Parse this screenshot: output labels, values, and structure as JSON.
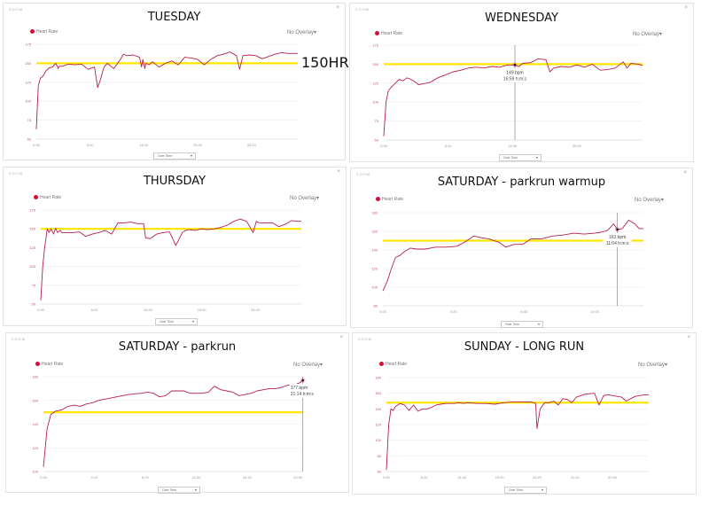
{
  "common": {
    "zoom_label": "ZOOM",
    "close_label": "×",
    "legend_label": "Heart Rate",
    "overlay_label": "No Overlay",
    "select_label": "Over Time",
    "line_color": "#b5204f",
    "threshold_color": "#ffe600",
    "legend_dot_color": "#d0103a"
  },
  "annotation": {
    "label": "150HR"
  },
  "chart_data": [
    {
      "type": "line",
      "title": "TUESDAY",
      "ylim": [
        50,
        175
      ],
      "yticks": [
        "50",
        "75",
        "100",
        "125",
        "150",
        "175"
      ],
      "xticks": [
        "0:00",
        "8:20",
        "16:40",
        "25:00",
        "33:20"
      ],
      "xmax_min": 40.5,
      "threshold": 150,
      "series": [
        {
          "name": "Heart Rate",
          "x": [
            0,
            0.3,
            0.6,
            1,
            1.5,
            2,
            2.5,
            3,
            3.4,
            3.5,
            4,
            5,
            6,
            7,
            8,
            9,
            9.5,
            10,
            10.3,
            10.5,
            11,
            12,
            13,
            13.5,
            14,
            15,
            16,
            16.3,
            16.5,
            16.8,
            17,
            17.5,
            18,
            19,
            20,
            21,
            22,
            23,
            24,
            25,
            26,
            27,
            28,
            29,
            30,
            31,
            31.5,
            32,
            33,
            34,
            35,
            36,
            37,
            38,
            39,
            40,
            40.5
          ],
          "y": [
            63,
            120,
            130,
            133,
            140,
            144,
            145,
            150,
            143,
            146,
            146,
            149,
            148,
            149,
            142,
            145,
            118,
            130,
            140,
            145,
            150,
            143,
            155,
            162,
            160,
            161,
            158,
            145,
            155,
            143,
            150,
            148,
            152,
            145,
            150,
            153,
            148,
            158,
            157,
            155,
            148,
            155,
            160,
            162,
            165,
            160,
            142,
            160,
            161,
            160,
            156,
            159,
            162,
            164,
            163,
            163,
            163
          ]
        }
      ],
      "tooltip": null
    },
    {
      "type": "line",
      "title": "WEDNESDAY",
      "ylim": [
        50,
        175
      ],
      "yticks": [
        "50",
        "75",
        "100",
        "125",
        "150",
        "175"
      ],
      "xticks": [
        "0:00",
        "8:20",
        "16:40",
        "25:00"
      ],
      "xmax_min": 33.5,
      "threshold": 150,
      "series": [
        {
          "name": "Heart Rate",
          "x": [
            0,
            0.3,
            0.6,
            1,
            1.5,
            2,
            2.5,
            3,
            3.5,
            4,
            4.5,
            5,
            6,
            7,
            8,
            9,
            10,
            11,
            12,
            13,
            14,
            15,
            16,
            16.9,
            17.5,
            18,
            19,
            20,
            21,
            21.5,
            22,
            23,
            24,
            25,
            26,
            27,
            28,
            29,
            30,
            31,
            31.5,
            32,
            33,
            33.5
          ],
          "y": [
            55,
            100,
            115,
            120,
            125,
            130,
            128,
            132,
            130,
            127,
            123,
            124,
            126,
            132,
            136,
            140,
            142,
            145,
            146,
            145,
            147,
            146,
            149,
            149,
            147,
            151,
            152,
            157,
            156,
            140,
            145,
            147,
            146,
            149,
            146,
            150,
            142,
            143,
            145,
            153,
            145,
            151,
            150,
            148
          ]
        }
      ],
      "tooltip": {
        "x": 16.98,
        "value": "149 bpm",
        "time": "16:59 h:m:s"
      }
    },
    {
      "type": "line",
      "title": "THURSDAY",
      "ylim": [
        50,
        175
      ],
      "yticks": [
        "50",
        "75",
        "100",
        "125",
        "150",
        "175"
      ],
      "xticks": [
        "0:00",
        "8:20",
        "16:40",
        "25:00",
        "33:20"
      ],
      "xmax_min": 40.5,
      "threshold": 150,
      "series": [
        {
          "name": "Heart Rate",
          "x": [
            0,
            0.3,
            0.6,
            1,
            1.3,
            1.6,
            2,
            2.3,
            2.6,
            3,
            3.3,
            4,
            5,
            6,
            7,
            8,
            9,
            10,
            11,
            12,
            13,
            14,
            15,
            16,
            16.3,
            17,
            18,
            19,
            20,
            21,
            22,
            22.3,
            23,
            24,
            25,
            26,
            27,
            28,
            29,
            30,
            31,
            32,
            33,
            33.5,
            34,
            35,
            36,
            37,
            38,
            39,
            40,
            40.5
          ],
          "y": [
            55,
            100,
            125,
            150,
            145,
            150,
            143,
            151,
            145,
            148,
            145,
            145,
            145,
            146,
            140,
            143,
            145,
            148,
            143,
            158,
            158,
            159,
            157,
            157,
            138,
            137,
            143,
            145,
            146,
            128,
            145,
            147,
            149,
            148,
            150,
            149,
            150,
            152,
            155,
            160,
            163,
            160,
            145,
            160,
            158,
            158,
            158,
            153,
            156,
            161,
            160,
            160
          ]
        }
      ],
      "tooltip": null
    },
    {
      "type": "line",
      "title": "SATURDAY - parkrun warmup",
      "ylim": [
        80,
        180
      ],
      "yticks": [
        "80",
        "100",
        "120",
        "140",
        "160",
        "180"
      ],
      "xticks": [
        "0:00",
        "3:20",
        "6:40",
        "10:00"
      ],
      "xmax_min": 12.3,
      "threshold": 150,
      "series": [
        {
          "name": "Heart Rate",
          "x": [
            0,
            0.2,
            0.4,
            0.6,
            0.8,
            1,
            1.3,
            1.6,
            2,
            2.5,
            3,
            3.5,
            3.9,
            4.3,
            4.7,
            5,
            5.5,
            5.8,
            6.2,
            6.6,
            7,
            7.5,
            8,
            8.5,
            9,
            9.5,
            10,
            10.3,
            10.6,
            10.9,
            11.07,
            11.3,
            11.6,
            11.9,
            12.1,
            12.3
          ],
          "y": [
            96,
            106,
            120,
            132,
            134,
            138,
            142,
            141,
            141,
            143,
            143,
            144,
            149,
            155,
            153,
            152,
            148,
            143,
            146,
            146,
            152,
            152,
            155,
            156,
            158,
            157,
            158,
            159,
            161,
            168,
            162,
            163,
            172,
            168,
            163,
            163
          ]
        }
      ],
      "tooltip": {
        "x": 11.07,
        "value": "163 bpm",
        "time": "11:04 h:m:s"
      }
    },
    {
      "type": "line",
      "title": "SATURDAY - parkrun",
      "ylim": [
        100,
        180
      ],
      "yticks": [
        "100",
        "120",
        "140",
        "160",
        "180"
      ],
      "xticks": [
        "0:00",
        "4:10",
        "8:20",
        "12:30",
        "16:40",
        "20:50"
      ],
      "xmax_min": 21.25,
      "threshold": 150,
      "series": [
        {
          "name": "Heart Rate",
          "x": [
            0,
            0.3,
            0.6,
            1,
            1.5,
            2,
            2.5,
            3,
            3.5,
            4,
            4.5,
            5,
            6,
            7,
            8,
            8.5,
            9,
            9.5,
            10,
            10.5,
            11,
            11.5,
            12,
            12.5,
            13,
            13.5,
            14,
            14.5,
            15,
            15.5,
            16,
            16.5,
            17,
            17.5,
            18,
            18.5,
            19,
            19.5,
            20,
            20.5,
            21,
            21.23
          ],
          "y": [
            104,
            136,
            148,
            151,
            152,
            155,
            156,
            155,
            157,
            158,
            160,
            161,
            163,
            165,
            166,
            167,
            166,
            163,
            164,
            168,
            168,
            168,
            166,
            166,
            166,
            167,
            172,
            169,
            168,
            167,
            164,
            165,
            166,
            168,
            169,
            170,
            170,
            171,
            173,
            173,
            175,
            177
          ]
        }
      ],
      "tooltip": {
        "x": 21.23,
        "value": "177 bpm",
        "time": "21:14 h:m:s"
      }
    },
    {
      "type": "line",
      "title": "SUNDAY - LONG RUN",
      "ylim": [
        60,
        180
      ],
      "yticks": [
        "60",
        "80",
        "100",
        "120",
        "140",
        "160",
        "180"
      ],
      "xticks": [
        "0:00",
        "8:20",
        "16:40",
        "25:00",
        "33:20",
        "41:40",
        "50:00"
      ],
      "xmax_min": 58,
      "threshold": 148,
      "series": [
        {
          "name": "Heart Rate",
          "x": [
            0,
            0.5,
            1,
            1.5,
            2,
            3,
            4,
            5,
            6,
            7,
            8,
            9,
            10,
            11,
            12,
            13,
            14,
            15,
            16,
            17,
            18,
            20,
            22,
            24,
            26,
            28,
            30,
            32,
            33,
            33.3,
            34,
            35,
            36,
            37,
            38,
            39,
            40,
            41,
            42,
            44,
            46,
            47,
            48,
            49,
            50,
            51,
            52,
            53,
            54,
            55,
            56,
            57,
            58
          ],
          "y": [
            62,
            120,
            140,
            138,
            143,
            147,
            145,
            138,
            145,
            137,
            140,
            140,
            142,
            145,
            146,
            147,
            147,
            147,
            148,
            147,
            148,
            147,
            147,
            146,
            148,
            149,
            149,
            149,
            147,
            115,
            140,
            148,
            148,
            150,
            145,
            153,
            152,
            148,
            155,
            159,
            160,
            145,
            157,
            158,
            157,
            156,
            155,
            150,
            153,
            156,
            157,
            158,
            158
          ]
        }
      ],
      "tooltip": null
    }
  ]
}
